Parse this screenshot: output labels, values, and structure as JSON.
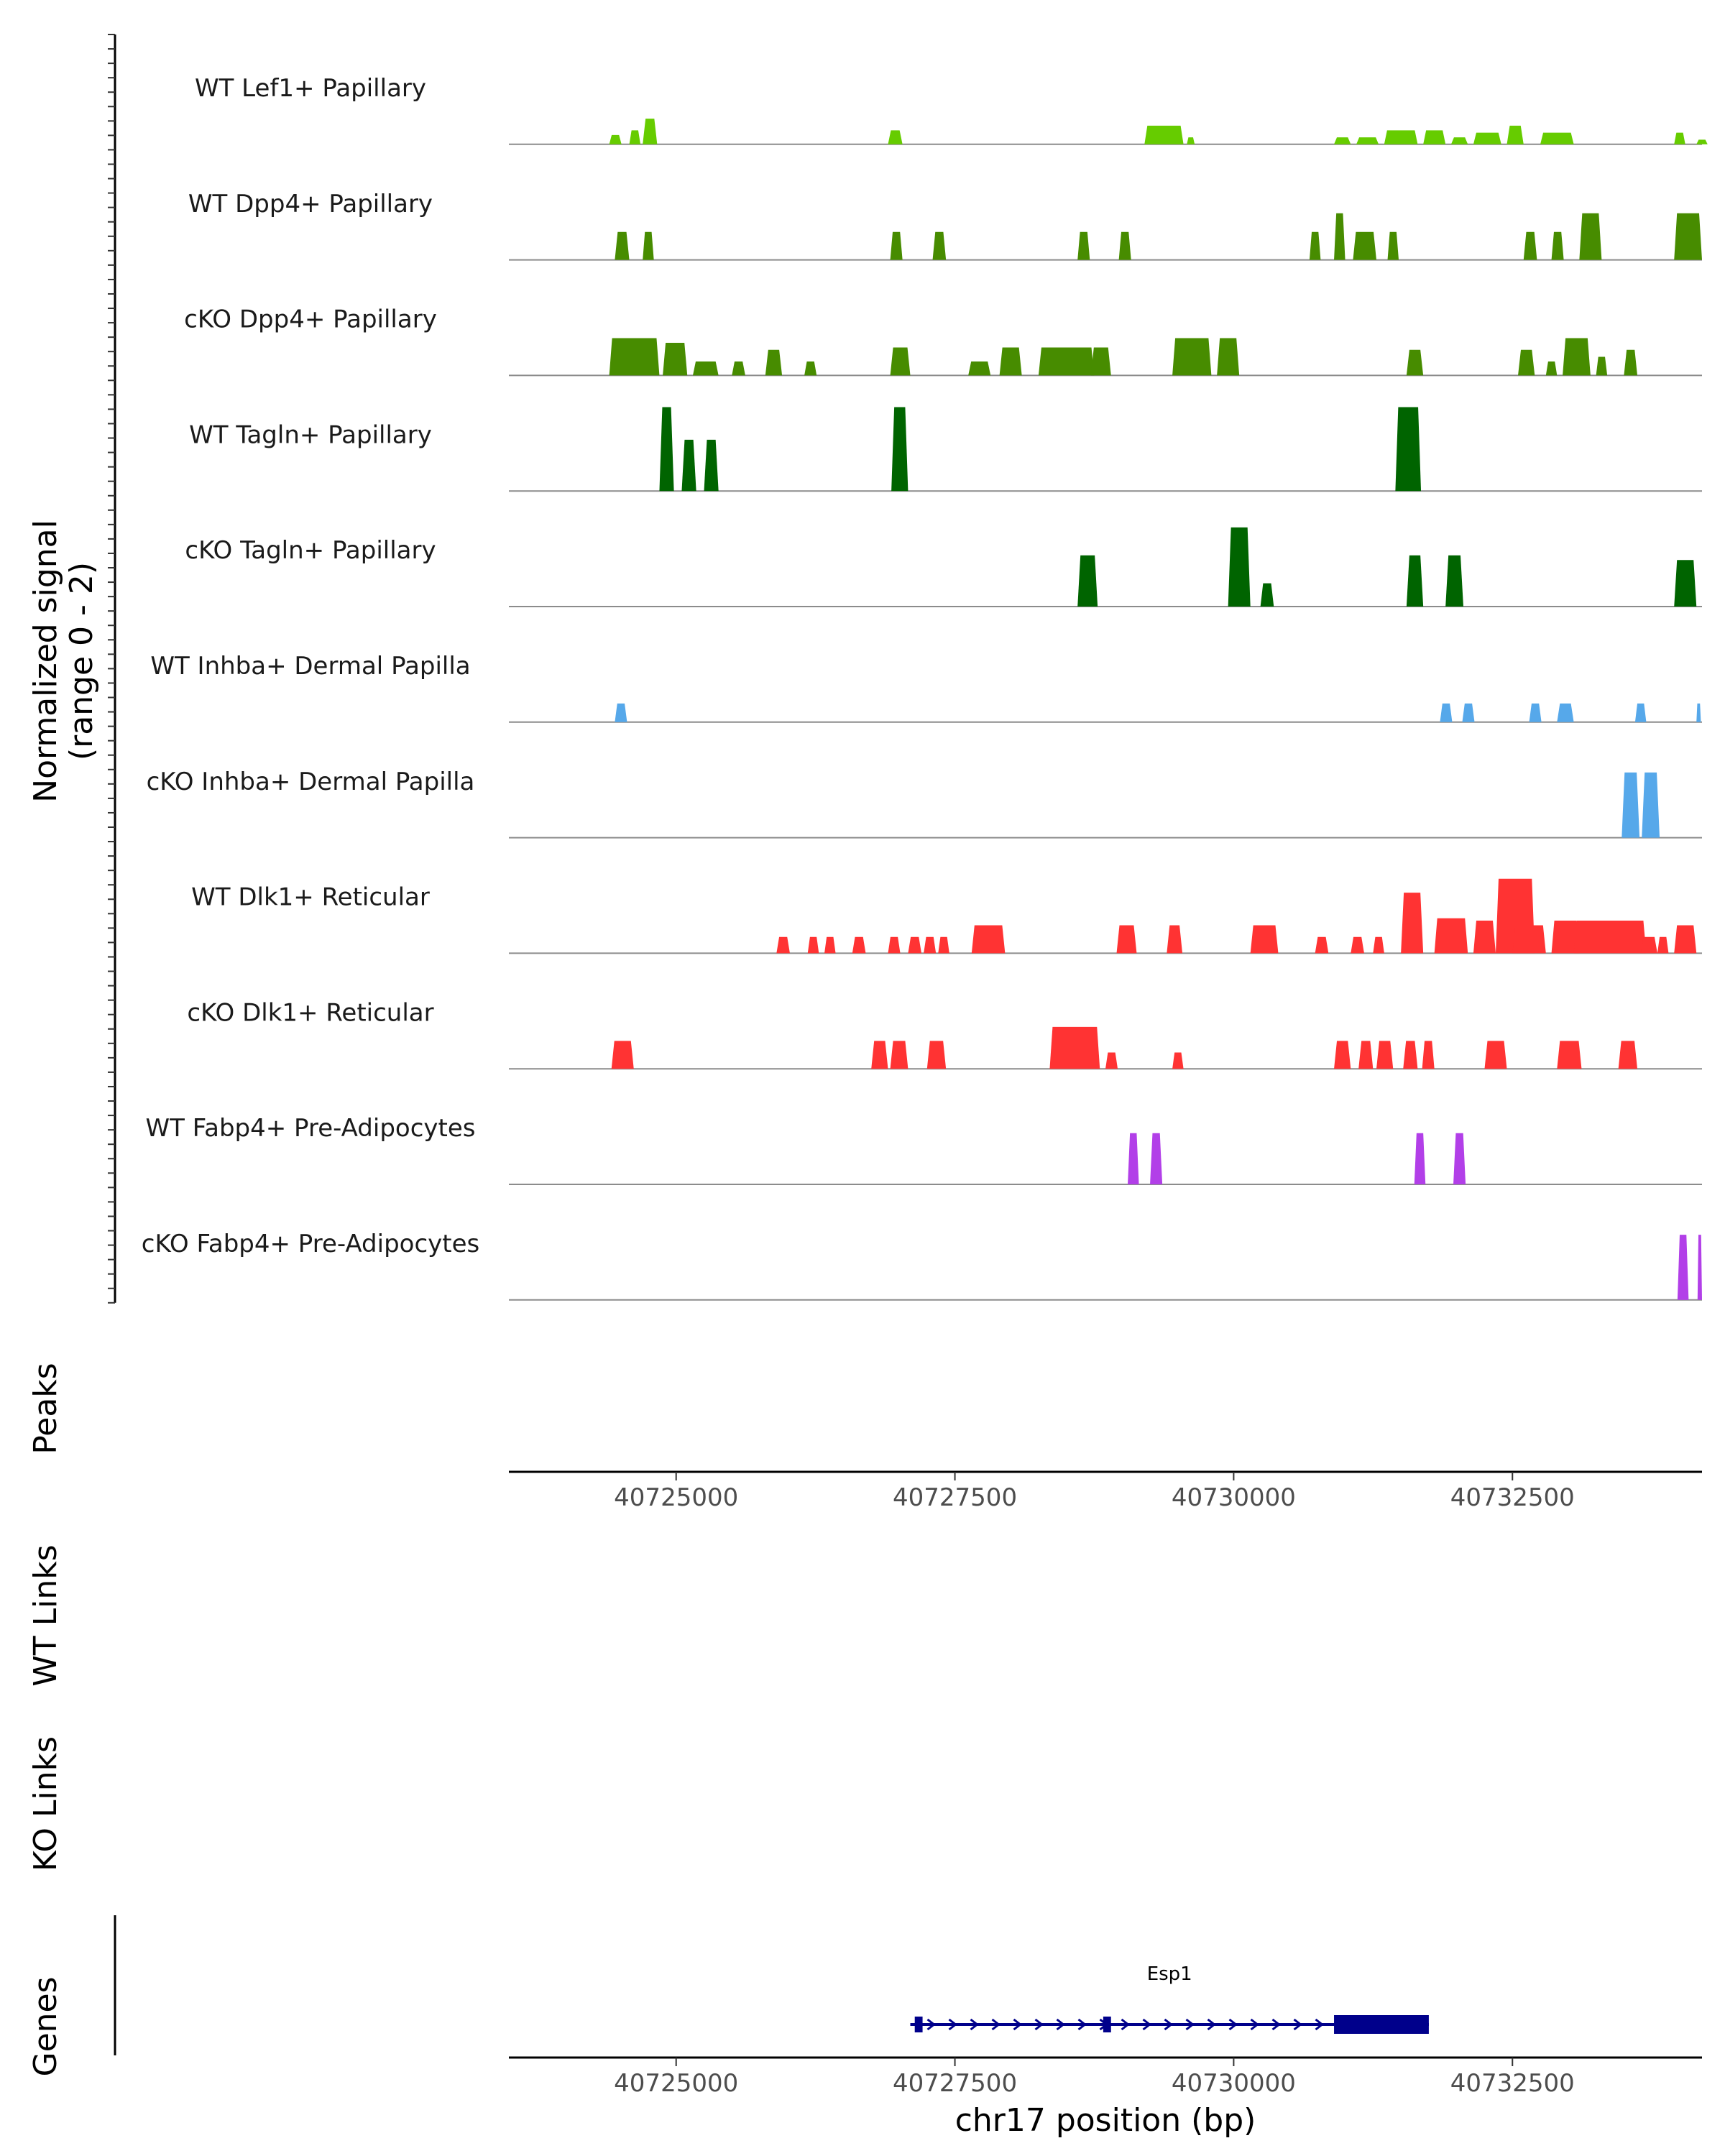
{
  "chart_data": {
    "type": "area",
    "title": "",
    "ylabel_line1": "Normalized signal",
    "ylabel_line2": "(range 0 - 2)",
    "xlabel": "chr17 position (bp)",
    "x_range": [
      40723500,
      40734200
    ],
    "y_range": [
      0,
      2
    ],
    "x_ticks": [
      40725000,
      40727500,
      40730000,
      40732500
    ],
    "x_tick_labels": [
      "40725000",
      "40727500",
      "40730000",
      "40732500"
    ],
    "tracks": [
      {
        "name": "WT Lef1+ Papillary",
        "color": "#66cc00",
        "peaks": [
          [
            40724400,
            40724510,
            0.2
          ],
          [
            40724580,
            40724680,
            0.3
          ],
          [
            40724700,
            40724830,
            0.55
          ],
          [
            40726900,
            40727030,
            0.3
          ],
          [
            40729200,
            40729550,
            0.4
          ],
          [
            40729580,
            40729650,
            0.15
          ],
          [
            40730900,
            40731050,
            0.15
          ],
          [
            40731100,
            40731300,
            0.15
          ],
          [
            40731350,
            40731650,
            0.3
          ],
          [
            40731700,
            40731900,
            0.3
          ],
          [
            40731950,
            40732100,
            0.15
          ],
          [
            40732150,
            40732400,
            0.25
          ],
          [
            40732450,
            40732600,
            0.4
          ],
          [
            40732750,
            40733050,
            0.25
          ],
          [
            40733950,
            40734050,
            0.25
          ],
          [
            40734150,
            40734250,
            0.1
          ]
        ]
      },
      {
        "name": "WT Dpp4+ Papillary",
        "color": "#478c00",
        "peaks": [
          [
            40724450,
            40724580,
            0.6
          ],
          [
            40724700,
            40724800,
            0.6
          ],
          [
            40726920,
            40727030,
            0.6
          ],
          [
            40727300,
            40727420,
            0.6
          ],
          [
            40728600,
            40728710,
            0.6
          ],
          [
            40728970,
            40729080,
            0.6
          ],
          [
            40730680,
            40730780,
            0.6
          ],
          [
            40730900,
            40731000,
            1.0
          ],
          [
            40731070,
            40731280,
            0.6
          ],
          [
            40731380,
            40731480,
            0.6
          ],
          [
            40732600,
            40732720,
            0.6
          ],
          [
            40732850,
            40732960,
            0.6
          ],
          [
            40733100,
            40733300,
            1.0
          ],
          [
            40733950,
            40734200,
            1.0
          ]
        ]
      },
      {
        "name": "cKO Dpp4+ Papillary",
        "color": "#478c00",
        "peaks": [
          [
            40724400,
            40724850,
            0.8
          ],
          [
            40724880,
            40725100,
            0.7
          ],
          [
            40725150,
            40725380,
            0.3
          ],
          [
            40725500,
            40725620,
            0.3
          ],
          [
            40725800,
            40725950,
            0.55
          ],
          [
            40726150,
            40726260,
            0.3
          ],
          [
            40726920,
            40727100,
            0.6
          ],
          [
            40727620,
            40727820,
            0.3
          ],
          [
            40727900,
            40728100,
            0.6
          ],
          [
            40728250,
            40728750,
            0.6
          ],
          [
            40728720,
            40728900,
            0.6
          ],
          [
            40729450,
            40729800,
            0.8
          ],
          [
            40729850,
            40730050,
            0.8
          ],
          [
            40731550,
            40731700,
            0.55
          ],
          [
            40732550,
            40732700,
            0.55
          ],
          [
            40732800,
            40732900,
            0.3
          ],
          [
            40732950,
            40733200,
            0.8
          ],
          [
            40733250,
            40733350,
            0.4
          ],
          [
            40733500,
            40733620,
            0.55
          ]
        ]
      },
      {
        "name": "WT Tagln+ Papillary",
        "color": "#006400",
        "peaks": [
          [
            40724850,
            40724980,
            1.8
          ],
          [
            40725050,
            40725180,
            1.1
          ],
          [
            40725250,
            40725380,
            1.1
          ],
          [
            40726930,
            40727080,
            1.8
          ],
          [
            40731450,
            40731680,
            1.8
          ]
        ]
      },
      {
        "name": "cKO Tagln+ Papillary",
        "color": "#006400",
        "peaks": [
          [
            40728600,
            40728780,
            1.1
          ],
          [
            40729950,
            40730150,
            1.7
          ],
          [
            40730240,
            40730360,
            0.5
          ],
          [
            40731550,
            40731700,
            1.1
          ],
          [
            40731900,
            40732060,
            1.1
          ],
          [
            40733950,
            40734150,
            1.0
          ]
        ]
      },
      {
        "name": "WT Inhba+ Dermal Papilla",
        "color": "#56a8ea",
        "peaks": [
          [
            40724450,
            40724560,
            0.4
          ],
          [
            40731850,
            40731960,
            0.4
          ],
          [
            40732050,
            40732160,
            0.4
          ],
          [
            40732650,
            40732760,
            0.4
          ],
          [
            40732900,
            40733050,
            0.4
          ],
          [
            40733600,
            40733700,
            0.4
          ],
          [
            40734150,
            40734190,
            0.4
          ]
        ]
      },
      {
        "name": "cKO Inhba+ Dermal Papilla",
        "color": "#56a8ea",
        "peaks": [
          [
            40733480,
            40733640,
            1.4
          ],
          [
            40733660,
            40733820,
            1.4
          ]
        ]
      },
      {
        "name": "WT Dlk1+ Reticular",
        "color": "#ff3333",
        "peaks": [
          [
            40725900,
            40726020,
            0.35
          ],
          [
            40726180,
            40726280,
            0.35
          ],
          [
            40726330,
            40726430,
            0.35
          ],
          [
            40726580,
            40726700,
            0.35
          ],
          [
            40726900,
            40727010,
            0.35
          ],
          [
            40727080,
            40727200,
            0.35
          ],
          [
            40727220,
            40727330,
            0.35
          ],
          [
            40727350,
            40727450,
            0.35
          ],
          [
            40727650,
            40727950,
            0.6
          ],
          [
            40728950,
            40729130,
            0.6
          ],
          [
            40729400,
            40729540,
            0.6
          ],
          [
            40730150,
            40730400,
            0.6
          ],
          [
            40730730,
            40730850,
            0.35
          ],
          [
            40731050,
            40731170,
            0.35
          ],
          [
            40731250,
            40731350,
            0.35
          ],
          [
            40731500,
            40731700,
            1.3
          ],
          [
            40731800,
            40732100,
            0.75
          ],
          [
            40732150,
            40732350,
            0.7
          ],
          [
            40732350,
            40732700,
            1.6
          ],
          [
            40732500,
            40732800,
            0.6
          ],
          [
            40732850,
            40733100,
            0.7
          ],
          [
            40733050,
            40733700,
            0.7
          ],
          [
            40733650,
            40733800,
            0.35
          ],
          [
            40733800,
            40733900,
            0.35
          ],
          [
            40733950,
            40734150,
            0.6
          ]
        ]
      },
      {
        "name": "cKO Dlk1+ Reticular",
        "color": "#ff3333",
        "peaks": [
          [
            40724420,
            40724620,
            0.6
          ],
          [
            40726750,
            40726900,
            0.6
          ],
          [
            40726920,
            40727080,
            0.6
          ],
          [
            40727250,
            40727420,
            0.6
          ],
          [
            40728350,
            40728800,
            0.9
          ],
          [
            40728850,
            40728960,
            0.35
          ],
          [
            40729450,
            40729550,
            0.35
          ],
          [
            40730900,
            40731050,
            0.6
          ],
          [
            40731120,
            40731250,
            0.6
          ],
          [
            40731280,
            40731430,
            0.6
          ],
          [
            40731520,
            40731650,
            0.6
          ],
          [
            40731690,
            40731800,
            0.6
          ],
          [
            40732250,
            40732450,
            0.6
          ],
          [
            40732900,
            40733120,
            0.6
          ],
          [
            40733450,
            40733620,
            0.6
          ]
        ]
      },
      {
        "name": "WT Fabp4+ Pre-Adipocytes",
        "color": "#b23fe8",
        "peaks": [
          [
            40729050,
            40729150,
            1.1
          ],
          [
            40729250,
            40729360,
            1.1
          ],
          [
            40731620,
            40731720,
            1.1
          ],
          [
            40731970,
            40732080,
            1.1
          ]
        ]
      },
      {
        "name": "cKO Fabp4+ Pre-Adipocytes",
        "color": "#b23fe8",
        "peaks": [
          [
            40733980,
            40734080,
            1.4
          ],
          [
            40734160,
            40734200,
            1.4
          ]
        ]
      }
    ],
    "peaks_title": "Peaks",
    "wt_links_title": "WT Links",
    "ko_links_title": "KO Links",
    "genes_title": "Genes",
    "gene": {
      "name": "Esp1",
      "start": 40727100,
      "end": 40731750,
      "strand": "+",
      "color": "#00008b",
      "exons": [
        [
          40727140,
          40727210
        ],
        [
          40728830,
          40728900
        ],
        [
          40730900,
          40731750
        ]
      ]
    }
  }
}
